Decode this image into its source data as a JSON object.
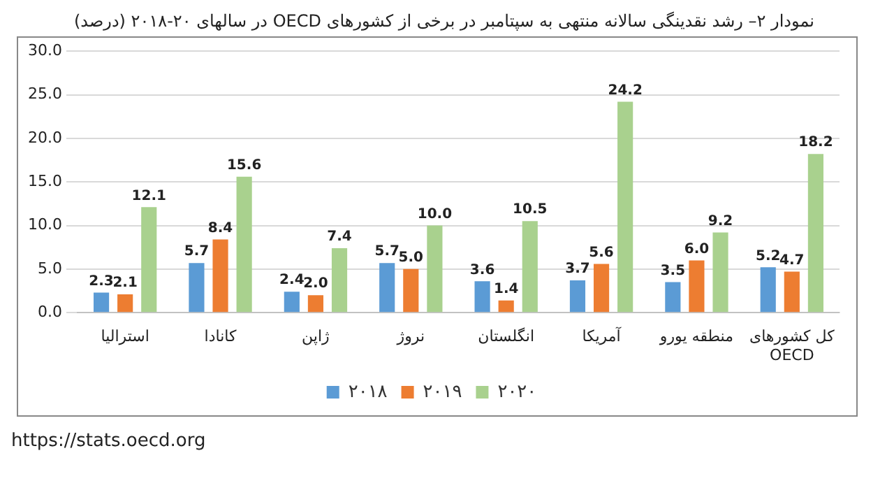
{
  "chart_data": {
    "type": "bar",
    "title": "نمودار ۲– رشد نقدینگی سالانه منتهی به سپتامبر در برخی از کشورهای OECD در سالهای ۲۰-۲۰۱۸ (درصد)",
    "categories": [
      "استرالیا",
      "کانادا",
      "ژاپن",
      "نروژ",
      "انگلستان",
      "آمریکا",
      "منطقه یورو",
      "کل کشورهای\nOECD"
    ],
    "series": [
      {
        "name": "۲۰۱۸",
        "color": "#5b9bd5",
        "values": [
          2.3,
          5.7,
          2.4,
          5.7,
          3.6,
          3.7,
          3.5,
          5.2
        ],
        "value_labels": [
          "2.3",
          "5.7",
          "2.4",
          "5.7",
          "3.6",
          "3.7",
          "3.5",
          "5.2"
        ]
      },
      {
        "name": "۲۰۱۹",
        "color": "#ed7d31",
        "values": [
          2.1,
          8.4,
          2.0,
          5.0,
          1.4,
          5.6,
          6.0,
          4.7
        ],
        "value_labels": [
          "2.1",
          "8.4",
          "2.0",
          "5.0",
          "1.4",
          "5.6",
          "6.0",
          "4.7"
        ]
      },
      {
        "name": "۲۰۲۰",
        "color": "#a9d18e",
        "values": [
          12.1,
          15.6,
          7.4,
          10.0,
          10.5,
          24.2,
          9.2,
          18.2
        ],
        "value_labels": [
          "12.1",
          "15.6",
          "7.4",
          "10.0",
          "10.5",
          "24.2",
          "9.2",
          "18.2"
        ]
      }
    ],
    "ylim": [
      0,
      30
    ],
    "yticks": [
      {
        "value": 0,
        "label": "0.0"
      },
      {
        "value": 5,
        "label": "5.0"
      },
      {
        "value": 10,
        "label": "10.0"
      },
      {
        "value": 15,
        "label": "15.0"
      },
      {
        "value": 20,
        "label": "20.0"
      },
      {
        "value": 25,
        "label": "25.0"
      },
      {
        "value": 30,
        "label": "30.0"
      }
    ],
    "grid": "y",
    "legend": "bottom",
    "annotations": [
      "https://stats.oecd.org"
    ]
  }
}
